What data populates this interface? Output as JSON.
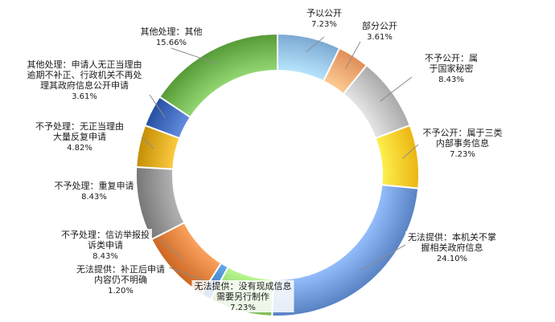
{
  "chart_data": {
    "type": "pie",
    "variant": "doughnut",
    "title": "",
    "slices": [
      {
        "label_lines": [
          "予以公开"
        ],
        "percent_label": "7.23%",
        "value": 7.23,
        "color": "#8fbce6"
      },
      {
        "label_lines": [
          "部分公开"
        ],
        "percent_label": "3.61%",
        "value": 3.61,
        "color": "#f4a26b"
      },
      {
        "label_lines": [
          "不予公开：属",
          "于国家秘密"
        ],
        "percent_label": "8.43%",
        "value": 8.43,
        "color": "#bdbdbd"
      },
      {
        "label_lines": [
          "不予公开：属于三类",
          "内部事务信息"
        ],
        "percent_label": "7.23%",
        "value": 7.23,
        "color": "#ffc825"
      },
      {
        "label_lines": [
          "无法提供：本机关不掌",
          "握相关政府信息"
        ],
        "percent_label": "24.10%",
        "value": 24.1,
        "color": "#6b95d6"
      },
      {
        "label_lines": [
          "无法提供：没有现成信息",
          "需要另行制作"
        ],
        "percent_label": "7.23%",
        "value": 7.23,
        "color": "#8fcf67"
      },
      {
        "label_lines": [
          "无法提供：补正后申请",
          "内容仍不明确"
        ],
        "percent_label": "1.20%",
        "value": 1.2,
        "color": "#3e7fc4"
      },
      {
        "label_lines": [
          "不予处理：信访举报投",
          "诉类申请"
        ],
        "percent_label": "8.43%",
        "value": 8.43,
        "color": "#df7a36"
      },
      {
        "label_lines": [
          "不予处理：重复申请"
        ],
        "percent_label": "8.43%",
        "value": 8.43,
        "color": "#8a8a8a"
      },
      {
        "label_lines": [
          "不予处理：无正当理由",
          "大量反复申请"
        ],
        "percent_label": "4.82%",
        "value": 4.82,
        "color": "#d8a217"
      },
      {
        "label_lines": [
          "其他处理：申请人无正当理由",
          "逾期不补正、行政机关不再处",
          "理其政府信息公开申请"
        ],
        "percent_label": "3.61%",
        "value": 3.61,
        "color": "#3a63b6"
      },
      {
        "label_lines": [
          "其他处理：其他"
        ],
        "percent_label": "15.66%",
        "value": 15.66,
        "color": "#6aae4a"
      }
    ]
  }
}
